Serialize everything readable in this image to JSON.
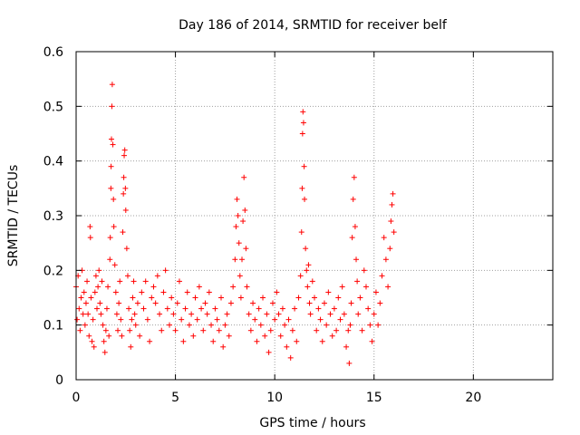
{
  "chart_data": {
    "type": "scatter",
    "title": "Day 186 of 2014, SRMTID for receiver belf",
    "xlabel": "GPS time / hours",
    "ylabel": "SRMTID / TECUs",
    "xlim": [
      0,
      24
    ],
    "ylim": [
      0,
      0.6
    ],
    "xticks": [
      0,
      5,
      10,
      15,
      20
    ],
    "yticks": [
      0,
      0.1,
      0.2,
      0.3,
      0.4,
      0.5,
      0.6
    ],
    "xtick_labels": [
      "0",
      "5",
      "10",
      "15",
      "20"
    ],
    "ytick_labels": [
      "0",
      "0.1",
      "0.2",
      "0.3",
      "0.4",
      "0.5",
      "0.6"
    ],
    "grid": true,
    "marker": "plus",
    "color": "#ff0000",
    "series": [
      {
        "name": "SRMTID",
        "points": [
          [
            0.0,
            0.17
          ],
          [
            0.05,
            0.11
          ],
          [
            0.1,
            0.19
          ],
          [
            0.15,
            0.13
          ],
          [
            0.2,
            0.09
          ],
          [
            0.25,
            0.15
          ],
          [
            0.3,
            0.2
          ],
          [
            0.35,
            0.12
          ],
          [
            0.4,
            0.16
          ],
          [
            0.45,
            0.1
          ],
          [
            0.5,
            0.14
          ],
          [
            0.55,
            0.18
          ],
          [
            0.6,
            0.12
          ],
          [
            0.65,
            0.08
          ],
          [
            0.7,
            0.28
          ],
          [
            0.72,
            0.26
          ],
          [
            0.75,
            0.15
          ],
          [
            0.8,
            0.07
          ],
          [
            0.85,
            0.11
          ],
          [
            0.9,
            0.06
          ],
          [
            0.95,
            0.16
          ],
          [
            1.0,
            0.19
          ],
          [
            1.05,
            0.13
          ],
          [
            1.1,
            0.17
          ],
          [
            1.15,
            0.2
          ],
          [
            1.2,
            0.14
          ],
          [
            1.25,
            0.12
          ],
          [
            1.3,
            0.18
          ],
          [
            1.35,
            0.1
          ],
          [
            1.4,
            0.07
          ],
          [
            1.45,
            0.05
          ],
          [
            1.5,
            0.09
          ],
          [
            1.55,
            0.13
          ],
          [
            1.6,
            0.17
          ],
          [
            1.65,
            0.08
          ],
          [
            1.7,
            0.22
          ],
          [
            1.72,
            0.26
          ],
          [
            1.75,
            0.35
          ],
          [
            1.76,
            0.39
          ],
          [
            1.78,
            0.44
          ],
          [
            1.8,
            0.5
          ],
          [
            1.82,
            0.54
          ],
          [
            1.85,
            0.43
          ],
          [
            1.88,
            0.33
          ],
          [
            1.9,
            0.28
          ],
          [
            1.95,
            0.21
          ],
          [
            2.0,
            0.16
          ],
          [
            2.05,
            0.12
          ],
          [
            2.1,
            0.09
          ],
          [
            2.15,
            0.14
          ],
          [
            2.2,
            0.18
          ],
          [
            2.25,
            0.11
          ],
          [
            2.3,
            0.08
          ],
          [
            2.35,
            0.27
          ],
          [
            2.38,
            0.34
          ],
          [
            2.4,
            0.37
          ],
          [
            2.42,
            0.41
          ],
          [
            2.45,
            0.42
          ],
          [
            2.48,
            0.35
          ],
          [
            2.5,
            0.31
          ],
          [
            2.55,
            0.24
          ],
          [
            2.6,
            0.19
          ],
          [
            2.65,
            0.13
          ],
          [
            2.7,
            0.09
          ],
          [
            2.75,
            0.06
          ],
          [
            2.8,
            0.11
          ],
          [
            2.85,
            0.15
          ],
          [
            2.9,
            0.18
          ],
          [
            2.95,
            0.12
          ],
          [
            3.0,
            0.1
          ],
          [
            3.1,
            0.14
          ],
          [
            3.2,
            0.08
          ],
          [
            3.3,
            0.16
          ],
          [
            3.4,
            0.13
          ],
          [
            3.5,
            0.18
          ],
          [
            3.6,
            0.11
          ],
          [
            3.7,
            0.07
          ],
          [
            3.8,
            0.15
          ],
          [
            3.9,
            0.17
          ],
          [
            4.0,
            0.14
          ],
          [
            4.1,
            0.19
          ],
          [
            4.2,
            0.12
          ],
          [
            4.3,
            0.09
          ],
          [
            4.4,
            0.16
          ],
          [
            4.5,
            0.2
          ],
          [
            4.6,
            0.13
          ],
          [
            4.7,
            0.1
          ],
          [
            4.8,
            0.15
          ],
          [
            4.9,
            0.12
          ],
          [
            5.0,
            0.09
          ],
          [
            5.1,
            0.14
          ],
          [
            5.2,
            0.18
          ],
          [
            5.3,
            0.11
          ],
          [
            5.4,
            0.07
          ],
          [
            5.5,
            0.13
          ],
          [
            5.6,
            0.16
          ],
          [
            5.7,
            0.1
          ],
          [
            5.8,
            0.12
          ],
          [
            5.9,
            0.08
          ],
          [
            6.0,
            0.15
          ],
          [
            6.1,
            0.11
          ],
          [
            6.2,
            0.17
          ],
          [
            6.3,
            0.13
          ],
          [
            6.4,
            0.09
          ],
          [
            6.5,
            0.14
          ],
          [
            6.6,
            0.12
          ],
          [
            6.7,
            0.16
          ],
          [
            6.8,
            0.1
          ],
          [
            6.9,
            0.07
          ],
          [
            7.0,
            0.13
          ],
          [
            7.1,
            0.11
          ],
          [
            7.2,
            0.09
          ],
          [
            7.3,
            0.15
          ],
          [
            7.4,
            0.06
          ],
          [
            7.5,
            0.1
          ],
          [
            7.6,
            0.12
          ],
          [
            7.7,
            0.08
          ],
          [
            7.8,
            0.14
          ],
          [
            7.9,
            0.17
          ],
          [
            8.0,
            0.22
          ],
          [
            8.05,
            0.28
          ],
          [
            8.1,
            0.33
          ],
          [
            8.15,
            0.3
          ],
          [
            8.2,
            0.25
          ],
          [
            8.25,
            0.19
          ],
          [
            8.3,
            0.15
          ],
          [
            8.35,
            0.22
          ],
          [
            8.4,
            0.29
          ],
          [
            8.45,
            0.37
          ],
          [
            8.5,
            0.31
          ],
          [
            8.55,
            0.24
          ],
          [
            8.6,
            0.17
          ],
          [
            8.7,
            0.12
          ],
          [
            8.8,
            0.09
          ],
          [
            8.9,
            0.14
          ],
          [
            9.0,
            0.11
          ],
          [
            9.1,
            0.07
          ],
          [
            9.2,
            0.13
          ],
          [
            9.3,
            0.1
          ],
          [
            9.4,
            0.15
          ],
          [
            9.5,
            0.08
          ],
          [
            9.6,
            0.12
          ],
          [
            9.7,
            0.05
          ],
          [
            9.8,
            0.09
          ],
          [
            9.9,
            0.14
          ],
          [
            10.0,
            0.11
          ],
          [
            10.1,
            0.16
          ],
          [
            10.2,
            0.12
          ],
          [
            10.3,
            0.08
          ],
          [
            10.4,
            0.13
          ],
          [
            10.5,
            0.1
          ],
          [
            10.6,
            0.06
          ],
          [
            10.7,
            0.11
          ],
          [
            10.8,
            0.04
          ],
          [
            10.9,
            0.09
          ],
          [
            11.0,
            0.13
          ],
          [
            11.1,
            0.07
          ],
          [
            11.2,
            0.15
          ],
          [
            11.3,
            0.19
          ],
          [
            11.35,
            0.27
          ],
          [
            11.38,
            0.35
          ],
          [
            11.4,
            0.45
          ],
          [
            11.42,
            0.49
          ],
          [
            11.45,
            0.47
          ],
          [
            11.48,
            0.39
          ],
          [
            11.5,
            0.33
          ],
          [
            11.55,
            0.24
          ],
          [
            11.6,
            0.2
          ],
          [
            11.65,
            0.17
          ],
          [
            11.7,
            0.21
          ],
          [
            11.75,
            0.14
          ],
          [
            11.8,
            0.12
          ],
          [
            11.9,
            0.18
          ],
          [
            12.0,
            0.15
          ],
          [
            12.1,
            0.09
          ],
          [
            12.2,
            0.13
          ],
          [
            12.3,
            0.11
          ],
          [
            12.4,
            0.07
          ],
          [
            12.5,
            0.14
          ],
          [
            12.6,
            0.1
          ],
          [
            12.7,
            0.16
          ],
          [
            12.8,
            0.12
          ],
          [
            12.9,
            0.08
          ],
          [
            13.0,
            0.13
          ],
          [
            13.1,
            0.09
          ],
          [
            13.2,
            0.15
          ],
          [
            13.3,
            0.11
          ],
          [
            13.4,
            0.17
          ],
          [
            13.5,
            0.12
          ],
          [
            13.6,
            0.06
          ],
          [
            13.7,
            0.09
          ],
          [
            13.75,
            0.03
          ],
          [
            13.8,
            0.1
          ],
          [
            13.85,
            0.14
          ],
          [
            13.9,
            0.26
          ],
          [
            13.95,
            0.33
          ],
          [
            14.0,
            0.37
          ],
          [
            14.05,
            0.28
          ],
          [
            14.1,
            0.22
          ],
          [
            14.15,
            0.18
          ],
          [
            14.2,
            0.12
          ],
          [
            14.3,
            0.15
          ],
          [
            14.4,
            0.09
          ],
          [
            14.5,
            0.2
          ],
          [
            14.6,
            0.17
          ],
          [
            14.7,
            0.13
          ],
          [
            14.8,
            0.1
          ],
          [
            14.9,
            0.07
          ],
          [
            15.0,
            0.12
          ],
          [
            15.1,
            0.16
          ],
          [
            15.2,
            0.1
          ],
          [
            15.3,
            0.14
          ],
          [
            15.4,
            0.19
          ],
          [
            15.5,
            0.26
          ],
          [
            15.6,
            0.22
          ],
          [
            15.7,
            0.17
          ],
          [
            15.8,
            0.24
          ],
          [
            15.85,
            0.29
          ],
          [
            15.9,
            0.32
          ],
          [
            15.95,
            0.34
          ],
          [
            16.0,
            0.27
          ]
        ]
      }
    ]
  }
}
